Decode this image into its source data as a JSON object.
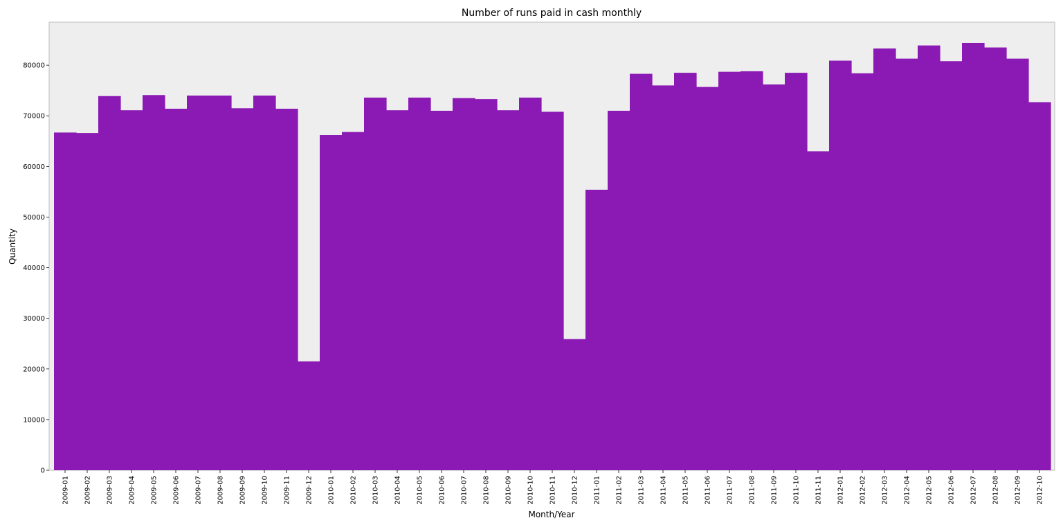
{
  "chart_data": {
    "type": "bar",
    "title": "Number of runs paid in cash monthly",
    "xlabel": "Month/Year",
    "ylabel": "Quantity",
    "ylim": [
      0,
      88500
    ],
    "yticks": [
      0,
      10000,
      20000,
      30000,
      40000,
      50000,
      60000,
      70000,
      80000
    ],
    "grid": false,
    "legend": "none",
    "colors": {
      "bar": "#8b19b4",
      "plot_background": "#eeeeee",
      "frame": "#bcbcbc"
    },
    "categories": [
      "2009-01",
      "2009-02",
      "2009-03",
      "2009-04",
      "2009-05",
      "2009-06",
      "2009-07",
      "2009-08",
      "2009-09",
      "2009-10",
      "2009-11",
      "2009-12",
      "2010-01",
      "2010-02",
      "2010-03",
      "2010-04",
      "2010-05",
      "2010-06",
      "2010-07",
      "2010-08",
      "2010-09",
      "2010-10",
      "2010-11",
      "2010-12",
      "2011-01",
      "2011-02",
      "2011-03",
      "2011-04",
      "2011-05",
      "2011-06",
      "2011-07",
      "2011-08",
      "2011-09",
      "2011-10",
      "2011-11",
      "2012-01",
      "2012-02",
      "2012-03",
      "2012-04",
      "2012-05",
      "2012-06",
      "2012-07",
      "2012-08",
      "2012-09",
      "2012-10"
    ],
    "values": [
      66700,
      66600,
      73900,
      71100,
      74100,
      71400,
      74000,
      74000,
      71500,
      74000,
      71400,
      21500,
      66200,
      66800,
      73600,
      71100,
      73600,
      71000,
      73500,
      73300,
      71100,
      73600,
      70800,
      25900,
      55400,
      71000,
      78300,
      76000,
      78500,
      75700,
      78700,
      78800,
      76200,
      78500,
      63000,
      80900,
      78400,
      83300,
      81300,
      83900,
      80800,
      84400,
      83500,
      81300,
      72700
    ]
  }
}
